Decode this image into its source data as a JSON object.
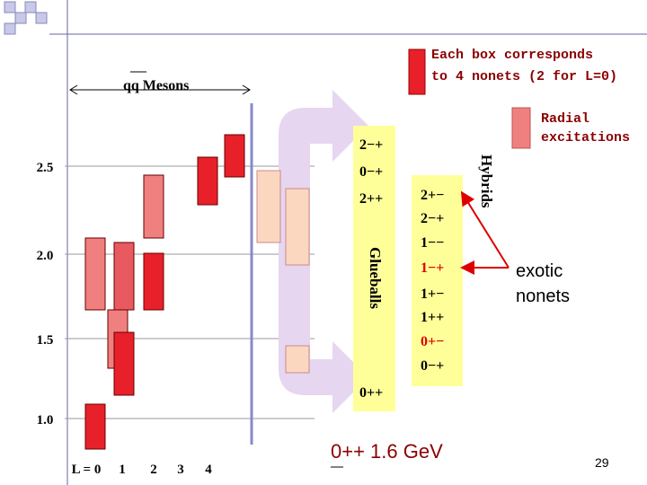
{
  "legend": {
    "boxes": "Each box corresponds",
    "nonets": "to 4 nonets (2 for L=0)",
    "radial_1": "Radial",
    "radial_2": "excitations"
  },
  "mesons_label": "qq Mesons",
  "mass_axis": [
    "2.5",
    "2.0",
    "1.5",
    "1.0"
  ],
  "l_axis": [
    "L = 0",
    "1",
    "2",
    "3",
    "4"
  ],
  "glueballs": {
    "label": "Glueballs",
    "states": [
      "2−+",
      "0−+",
      "2++",
      "0++"
    ]
  },
  "hybrids": {
    "label": "Hybrids",
    "states": [
      "2+−",
      "2−+",
      "1−−",
      "1−+",
      "1+−",
      "1++",
      "0+−",
      "0−+"
    ]
  },
  "exotic": [
    "exotic",
    "nonets"
  ],
  "note": "0++ 1.6 GeV",
  "page_number": "29"
}
